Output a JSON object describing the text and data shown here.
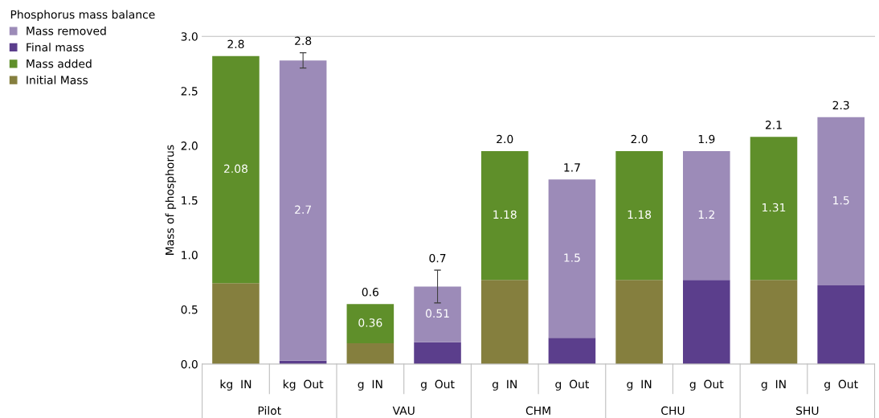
{
  "chart_data": {
    "type": "bar",
    "stacked": true,
    "ylabel": "Mass of phosphorus",
    "legend_title": "Phosphorus mass balance",
    "legend": "left",
    "categories": [
      "kg  IN",
      "kg  Out",
      "g  IN",
      "g  Out",
      "g  IN",
      "g  Out",
      "g  IN",
      "g  Out",
      "g  IN",
      "g  Out"
    ],
    "annotations": [
      "Pilot",
      "VAU",
      "CHM",
      "CHU",
      "SHU"
    ],
    "series": [
      {
        "name": "Initial Mass",
        "color": "#857f3e",
        "values": [
          0.74,
          null,
          0.19,
          null,
          0.77,
          null,
          0.77,
          null,
          0.77,
          null
        ]
      },
      {
        "name": "Mass added",
        "color": "#5f8f2a",
        "values": [
          2.08,
          null,
          0.36,
          null,
          1.18,
          null,
          1.18,
          null,
          1.31,
          null
        ],
        "value_labels": [
          "2.08",
          null,
          "0.36",
          null,
          "1.18",
          null,
          "1.18",
          null,
          "1.31",
          null
        ]
      },
      {
        "name": "Final mass",
        "color": "#5b3e8c",
        "values": [
          null,
          0.03,
          null,
          0.2,
          null,
          0.24,
          null,
          0.77,
          null,
          0.72
        ]
      },
      {
        "name": "Mass removed",
        "color": "#9c8bb8",
        "values": [
          null,
          2.75,
          null,
          0.51,
          null,
          1.45,
          null,
          1.18,
          null,
          1.54
        ],
        "value_labels": [
          null,
          "2.7",
          null,
          "0.51",
          null,
          "1.5",
          null,
          "1.2",
          null,
          "1.5"
        ],
        "errors": [
          null,
          0.07,
          null,
          0.15,
          null,
          null,
          null,
          null,
          null,
          null
        ]
      }
    ],
    "totals": [
      "2.8",
      "2.8",
      "0.6",
      "0.7",
      "2.0",
      "1.7",
      "2.0",
      "1.9",
      "2.1",
      "2.3"
    ],
    "ylim": [
      0,
      3
    ],
    "yticks": [
      {
        "value": 0,
        "label": "0.0"
      },
      {
        "value": 0.5,
        "label": "0.5"
      },
      {
        "value": 1,
        "label": "1.0"
      },
      {
        "value": 1.5,
        "label": "1.5"
      },
      {
        "value": 2,
        "label": "2.0"
      },
      {
        "value": 2.5,
        "label": "2.5"
      },
      {
        "value": 3,
        "label": "3.0"
      }
    ],
    "grid": false
  }
}
